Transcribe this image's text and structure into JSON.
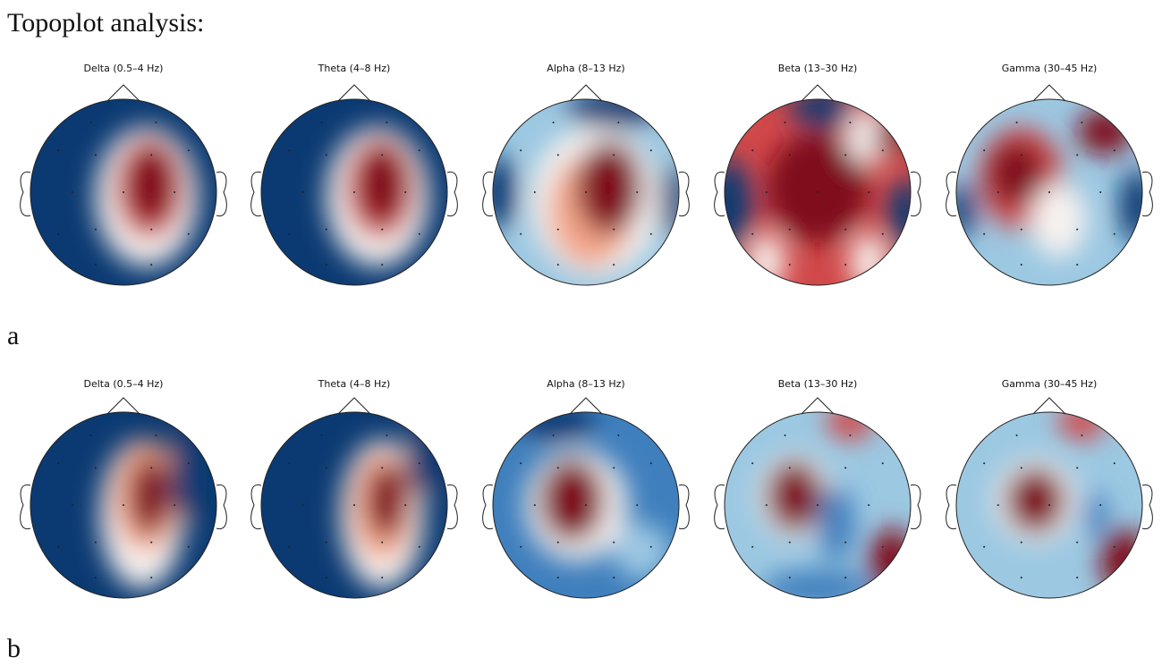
{
  "title": "Topoplot analysis:",
  "panels": [
    {
      "label": "a",
      "plots": [
        "Delta (0.5–4 Hz)",
        "Theta (4–8 Hz)",
        "Alpha (8–13 Hz)",
        "Beta (13–30 Hz)",
        "Gamma (30–45 Hz)"
      ]
    },
    {
      "label": "b",
      "plots": [
        "Delta (0.5–4 Hz)",
        "Theta (4–8 Hz)",
        "Alpha (8–13 Hz)",
        "Beta (13–30 Hz)",
        "Gamma (30–45 Hz)"
      ]
    }
  ]
}
